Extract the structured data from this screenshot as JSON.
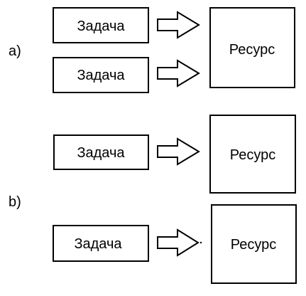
{
  "diagram": {
    "section_a": {
      "label": "a)",
      "tasks": [
        {
          "label": "Задача"
        },
        {
          "label": "Задача"
        }
      ],
      "resource": {
        "label": "Ресурс"
      }
    },
    "section_b": {
      "label": "b)",
      "groups": [
        {
          "task": {
            "label": "Задача"
          },
          "resource": {
            "label": "Ресурс"
          }
        },
        {
          "task": {
            "label": "Задача"
          },
          "resource": {
            "label": "Ресурс"
          }
        }
      ]
    },
    "colors": {
      "stroke": "#000000",
      "fill": "#ffffff",
      "text": "#000000"
    }
  }
}
